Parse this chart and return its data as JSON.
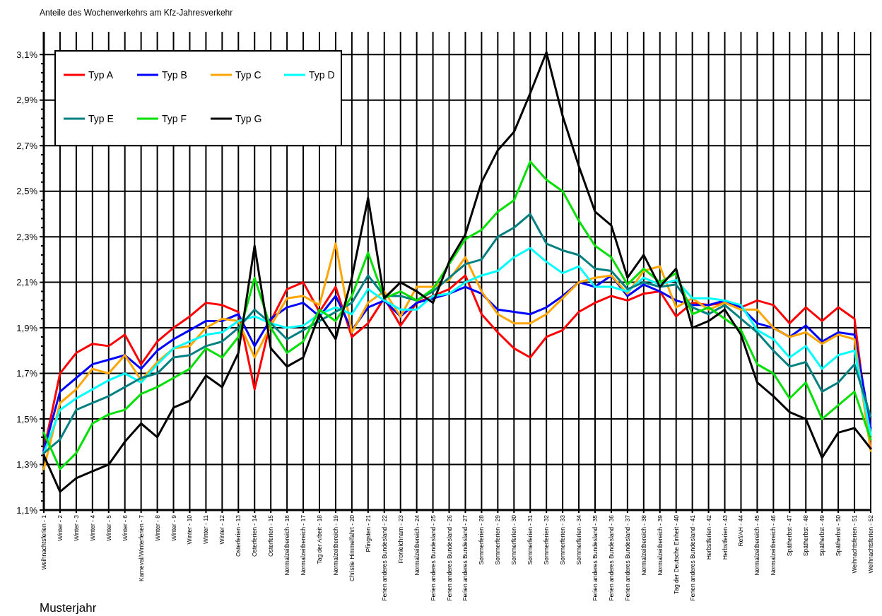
{
  "chart_data": {
    "type": "line",
    "title": "Anteile des Wochenverkehrs am Kfz-Jahresverkehr",
    "xlabel": "Musterjahr",
    "categories": [
      "Weihnachtsferien - 1",
      "Winter - 2",
      "Winter - 3",
      "Winter - 4",
      "Winter - 5",
      "Winter - 6",
      "Karneval/Winterferien - 7",
      "Winter - 8",
      "Winter - 9",
      "Winter - 10",
      "Winter - 11",
      "Winter - 12",
      "Osterferien - 13",
      "Osterferien - 14",
      "Osterferien - 15",
      "Normalzeitbereich - 16",
      "Normalzeitbereich - 17",
      "Tag der Arbeit - 18",
      "Normalzeitbereich - 19",
      "Christie Himmelfahrt - 20",
      "Pfingsten - 21",
      "Ferien anderes Bundesland - 22",
      "Fronleichnam - 23",
      "Normalzeitbereich - 24",
      "Ferien anderes Bundesland - 25",
      "Ferien anderes Bundesland - 26",
      "Ferien anderes Bundesland - 27",
      "Sommerferien - 28",
      "Sommerferien - 29",
      "Sommerferien - 30",
      "Sommerferien - 31",
      "Sommerferien - 32",
      "Sommerferien - 33",
      "Sommerferien - 34",
      "Ferien anderes Bundesland - 35",
      "Ferien anderes Bundesland - 36",
      "Ferien anderes Bundesland - 37",
      "Normalzeitbereich - 38",
      "Normalzeitbereich - 39",
      "Tag der Deutsche Einheit - 40",
      "Ferien anderes Bundesland - 41",
      "Herbstferien - 42",
      "Herbstferien - 43",
      "Ref/AH - 44",
      "Normalzeitbereich - 45",
      "Normalzeitbereich - 46",
      "Spätherbst - 47",
      "Spätherbst - 48",
      "Spätherbst - 49",
      "Spätherbst - 50",
      "Weihnachtsferien - 51",
      "Weihnachtsferien - 52"
    ],
    "series": [
      {
        "name": "Typ A",
        "color": "#ff0000",
        "values": [
          1.36,
          1.7,
          1.79,
          1.83,
          1.82,
          1.87,
          1.74,
          1.84,
          1.9,
          1.95,
          2.01,
          2.0,
          1.97,
          1.63,
          1.93,
          2.07,
          2.1,
          1.97,
          2.08,
          1.86,
          1.92,
          2.03,
          1.91,
          2.01,
          2.04,
          2.07,
          2.13,
          1.96,
          1.88,
          1.81,
          1.77,
          1.86,
          1.89,
          1.97,
          2.01,
          2.04,
          2.02,
          2.05,
          2.06,
          1.95,
          2.01,
          2.0,
          2.01,
          1.99,
          2.02,
          2.0,
          1.92,
          1.99,
          1.93,
          1.99,
          1.94,
          1.37
        ]
      },
      {
        "name": "Typ B",
        "color": "#0000ff",
        "values": [
          1.36,
          1.62,
          1.68,
          1.74,
          1.76,
          1.78,
          1.72,
          1.8,
          1.85,
          1.89,
          1.93,
          1.93,
          1.96,
          1.82,
          1.94,
          1.99,
          2.01,
          1.95,
          2.04,
          1.89,
          1.99,
          2.02,
          1.95,
          2.01,
          2.03,
          2.05,
          2.08,
          2.05,
          1.98,
          1.97,
          1.96,
          1.99,
          2.04,
          2.1,
          2.08,
          2.13,
          2.04,
          2.09,
          2.06,
          2.02,
          2.0,
          2.0,
          2.02,
          1.99,
          1.92,
          1.9,
          1.86,
          1.91,
          1.84,
          1.88,
          1.87,
          1.46
        ]
      },
      {
        "name": "Typ C",
        "color": "#ffa500",
        "values": [
          1.28,
          1.57,
          1.63,
          1.72,
          1.7,
          1.78,
          1.67,
          1.75,
          1.81,
          1.82,
          1.9,
          1.94,
          1.93,
          1.77,
          1.91,
          2.03,
          2.04,
          2.0,
          2.27,
          1.88,
          2.01,
          2.06,
          1.95,
          2.08,
          2.08,
          2.11,
          2.21,
          2.06,
          1.96,
          1.92,
          1.92,
          1.96,
          2.03,
          2.1,
          2.12,
          2.13,
          2.05,
          2.15,
          2.17,
          1.99,
          2.03,
          1.98,
          2.01,
          1.98,
          1.98,
          1.9,
          1.86,
          1.88,
          1.83,
          1.87,
          1.85,
          1.36
        ]
      },
      {
        "name": "Typ D",
        "color": "#00ffff",
        "values": [
          1.35,
          1.54,
          1.59,
          1.63,
          1.67,
          1.7,
          1.66,
          1.74,
          1.81,
          1.84,
          1.87,
          1.88,
          1.93,
          1.95,
          1.92,
          1.9,
          1.91,
          1.96,
          1.99,
          1.96,
          2.07,
          2.02,
          1.98,
          1.98,
          2.04,
          2.05,
          2.1,
          2.13,
          2.15,
          2.21,
          2.25,
          2.19,
          2.14,
          2.17,
          2.08,
          2.08,
          2.06,
          2.12,
          2.09,
          2.11,
          2.03,
          2.03,
          2.02,
          2.0,
          1.89,
          1.85,
          1.77,
          1.82,
          1.72,
          1.78,
          1.8,
          1.43
        ]
      },
      {
        "name": "Typ E",
        "color": "#008080",
        "values": [
          1.35,
          1.41,
          1.54,
          1.57,
          1.6,
          1.64,
          1.68,
          1.7,
          1.77,
          1.78,
          1.82,
          1.84,
          1.9,
          1.98,
          1.92,
          1.85,
          1.89,
          1.93,
          1.97,
          2.01,
          2.13,
          2.04,
          2.04,
          2.02,
          2.06,
          2.12,
          2.18,
          2.2,
          2.3,
          2.34,
          2.4,
          2.27,
          2.24,
          2.22,
          2.16,
          2.15,
          2.07,
          2.1,
          2.08,
          2.09,
          1.99,
          1.96,
          2.0,
          1.94,
          1.88,
          1.8,
          1.73,
          1.75,
          1.62,
          1.66,
          1.74,
          1.51
        ]
      },
      {
        "name": "Typ F",
        "color": "#00e000",
        "values": [
          1.44,
          1.28,
          1.35,
          1.48,
          1.52,
          1.54,
          1.61,
          1.64,
          1.68,
          1.72,
          1.81,
          1.77,
          1.86,
          2.12,
          1.9,
          1.79,
          1.84,
          1.98,
          1.93,
          2.04,
          2.23,
          2.03,
          2.06,
          2.02,
          2.07,
          2.18,
          2.29,
          2.33,
          2.41,
          2.46,
          2.63,
          2.55,
          2.5,
          2.37,
          2.26,
          2.21,
          2.09,
          2.16,
          2.1,
          2.14,
          1.96,
          1.99,
          1.94,
          1.89,
          1.74,
          1.7,
          1.59,
          1.66,
          1.5,
          1.56,
          1.62,
          1.41
        ]
      },
      {
        "name": "Typ G",
        "color": "#000000",
        "values": [
          1.34,
          1.18,
          1.24,
          1.27,
          1.3,
          1.4,
          1.48,
          1.42,
          1.55,
          1.58,
          1.69,
          1.64,
          1.79,
          2.26,
          1.81,
          1.73,
          1.77,
          1.96,
          1.85,
          2.12,
          2.47,
          2.03,
          2.1,
          2.06,
          2.01,
          2.19,
          2.31,
          2.54,
          2.68,
          2.76,
          2.93,
          3.11,
          2.83,
          2.61,
          2.41,
          2.35,
          2.12,
          2.22,
          2.08,
          2.16,
          1.9,
          1.93,
          1.98,
          1.87,
          1.66,
          1.6,
          1.53,
          1.5,
          1.33,
          1.44,
          1.46,
          1.37
        ]
      }
    ],
    "ylim": [
      1.1,
      3.2
    ],
    "yticks": [
      {
        "value": 1.1,
        "label": "1,1%"
      },
      {
        "value": 1.3,
        "label": "1,3%"
      },
      {
        "value": 1.5,
        "label": "1,5%"
      },
      {
        "value": 1.7,
        "label": "1,7%"
      },
      {
        "value": 1.9,
        "label": "1,9%"
      },
      {
        "value": 2.1,
        "label": "2,1%"
      },
      {
        "value": 2.3,
        "label": "2,3%"
      },
      {
        "value": 2.5,
        "label": "2,5%"
      },
      {
        "value": 2.7,
        "label": "2,7%"
      },
      {
        "value": 2.9,
        "label": "2,9%"
      },
      {
        "value": 3.1,
        "label": "3,1%"
      }
    ],
    "grid": true,
    "legend": "top left",
    "marker": "none",
    "line_style": "solid"
  }
}
